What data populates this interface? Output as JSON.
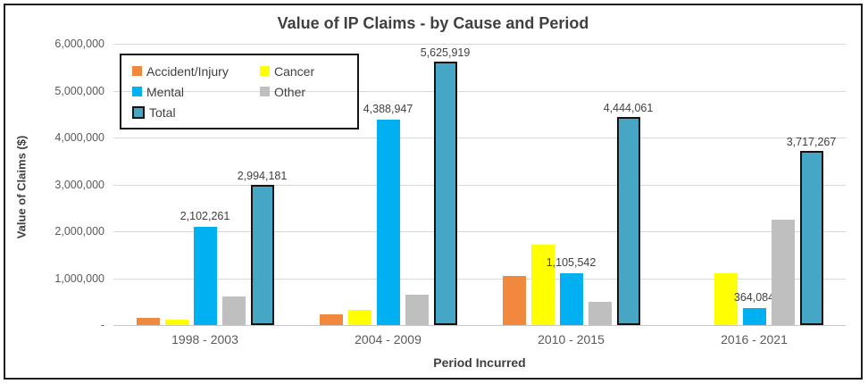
{
  "chart_data": {
    "type": "bar",
    "title": "Value of IP Claims - by Cause and Period",
    "xlabel": "Period Incurred",
    "ylabel": "Value of Claims ($)",
    "categories": [
      "1998 - 2003",
      "2004 - 2009",
      "2010 - 2015",
      "2016 - 2021"
    ],
    "series": [
      {
        "name": "Accident/Injury",
        "color": "#F0893E",
        "values": [
          150000,
          230000,
          1050000,
          0
        ],
        "data_labels": [
          null,
          null,
          null,
          null
        ]
      },
      {
        "name": "Cancer",
        "color": "#FFFF00",
        "values": [
          110000,
          320000,
          1720000,
          1100000
        ],
        "data_labels": [
          null,
          null,
          null,
          null
        ]
      },
      {
        "name": "Mental",
        "color": "#00B0F0",
        "values": [
          2102261,
          4388947,
          1105542,
          364084
        ],
        "data_labels": [
          "2,102,261",
          "4,388,947",
          "1,105,542",
          "364,084"
        ]
      },
      {
        "name": "Other",
        "color": "#BFBFBF",
        "values": [
          620000,
          650000,
          500000,
          2250000
        ],
        "data_labels": [
          null,
          null,
          null,
          null
        ]
      },
      {
        "name": "Total",
        "color": "#46A6C6",
        "border_color": "#141414",
        "values": [
          2994181,
          5625919,
          4444061,
          3717267
        ],
        "data_labels": [
          "2,994,181",
          "5,625,919",
          "4,444,061",
          "3,717,267"
        ]
      }
    ],
    "ylim": [
      0,
      6000000
    ],
    "yticks": [
      {
        "value": 6000000,
        "label": "6,000,000"
      },
      {
        "value": 5000000,
        "label": "5,000,000"
      },
      {
        "value": 4000000,
        "label": "4,000,000"
      },
      {
        "value": 3000000,
        "label": "3,000,000"
      },
      {
        "value": 2000000,
        "label": "2,000,000"
      },
      {
        "value": 1000000,
        "label": "1,000,000"
      },
      {
        "value": 0,
        "label": "-"
      }
    ],
    "grid": true,
    "legend_position": "inside-top-left"
  },
  "colors": {
    "gridline": "#D9D9D9",
    "axis_text": "#595959",
    "title_text": "#404040",
    "frame_border": "#1F1F1F"
  }
}
